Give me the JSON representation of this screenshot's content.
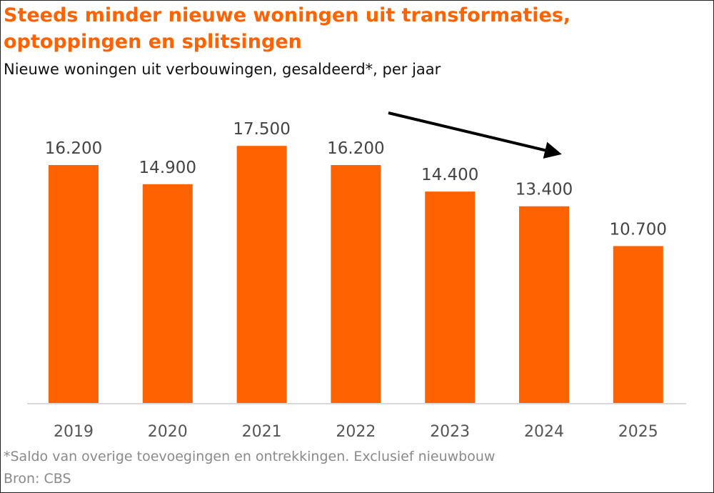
{
  "chart_data": {
    "type": "bar",
    "title": "Steeds minder nieuwe woningen uit transformaties, optoppingen en splitsingen",
    "subtitle": "Nieuwe woningen uit verbouwingen, gesaldeerd*, per jaar",
    "categories": [
      "2019",
      "2020",
      "2021",
      "2022",
      "2023",
      "2024",
      "2025"
    ],
    "values": [
      16200,
      14900,
      17500,
      16200,
      14400,
      13400,
      10700
    ],
    "value_labels": [
      "16.200",
      "14.900",
      "17.500",
      "16.200",
      "14.400",
      "13.400",
      "10.700"
    ],
    "ylim": [
      0,
      18000
    ],
    "grid": false,
    "bar_color": "#ff6200",
    "annotations": [
      {
        "type": "arrow",
        "meaning": "downward trend",
        "from_category": "2022",
        "to_category": "2024"
      }
    ],
    "footnote": "*Saldo van overige toevoegingen en ontrekkingen. Exclusief nieuwbouw",
    "source": "Bron: CBS"
  }
}
